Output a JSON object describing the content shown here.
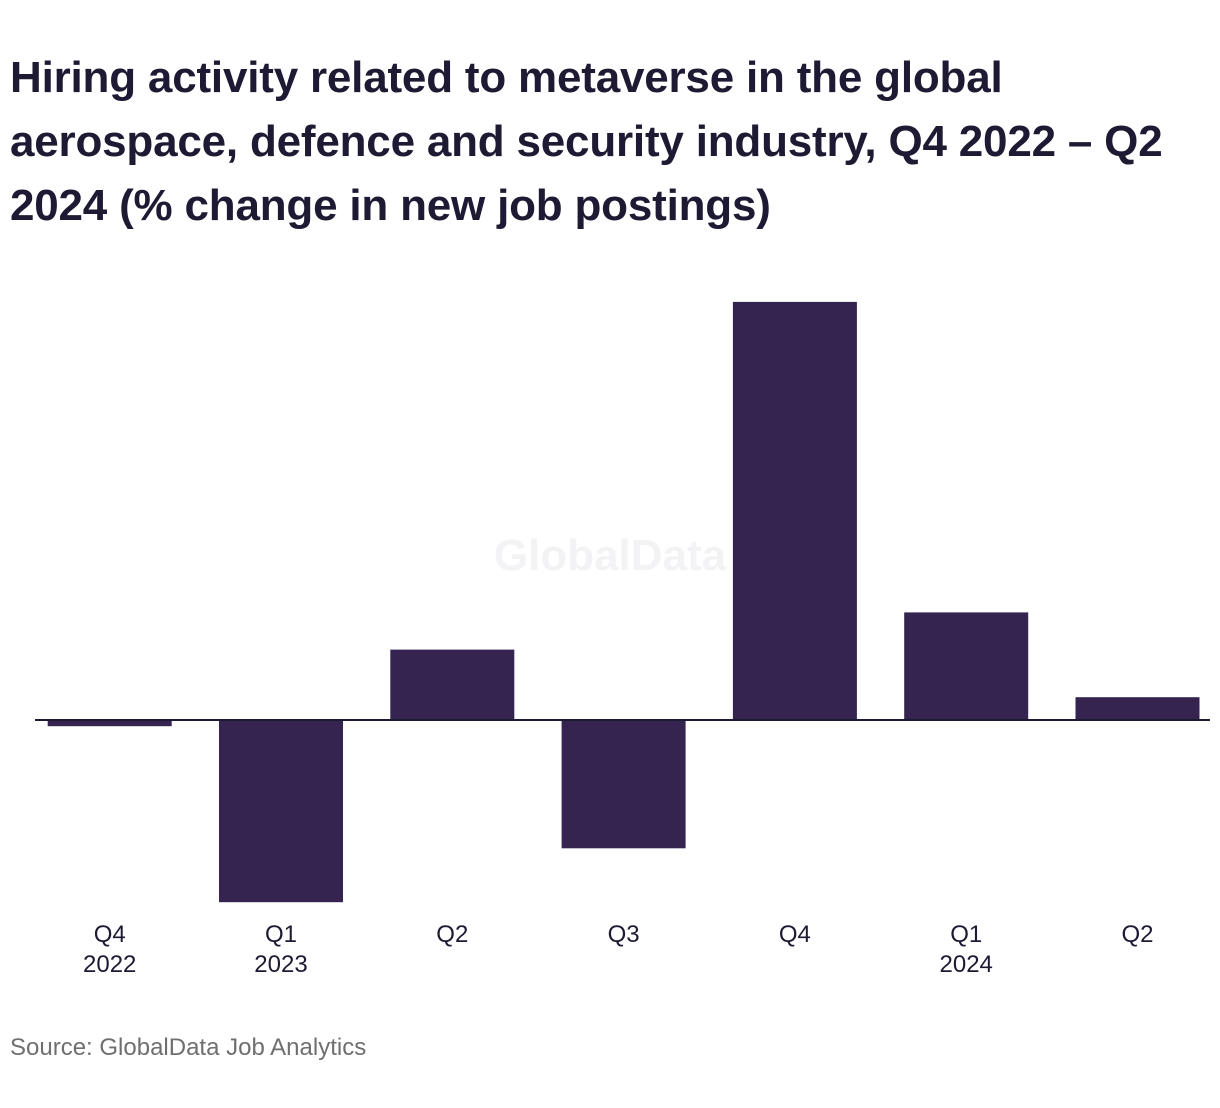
{
  "chart_data": {
    "type": "bar",
    "title": "Hiring activity related to metaverse in the global aerospace, defence and security industry, Q4 2022 – Q2 2024 (% change in new job postings)",
    "categories": [
      {
        "quarter": "Q4",
        "year": "2022"
      },
      {
        "quarter": "Q1",
        "year": "2023"
      },
      {
        "quarter": "Q2",
        "year": ""
      },
      {
        "quarter": "Q3",
        "year": ""
      },
      {
        "quarter": "Q4",
        "year": ""
      },
      {
        "quarter": "Q1",
        "year": "2024"
      },
      {
        "quarter": "Q2",
        "year": ""
      }
    ],
    "values": [
      -1.5,
      -44,
      17,
      -31,
      101,
      26,
      5.5
    ],
    "ylim": [
      -50,
      110
    ],
    "grid": false,
    "bar_color": "#352450",
    "axis_color": "#1f1a33"
  },
  "watermark": "GlobalData",
  "source": "Source: GlobalData Job Analytics"
}
